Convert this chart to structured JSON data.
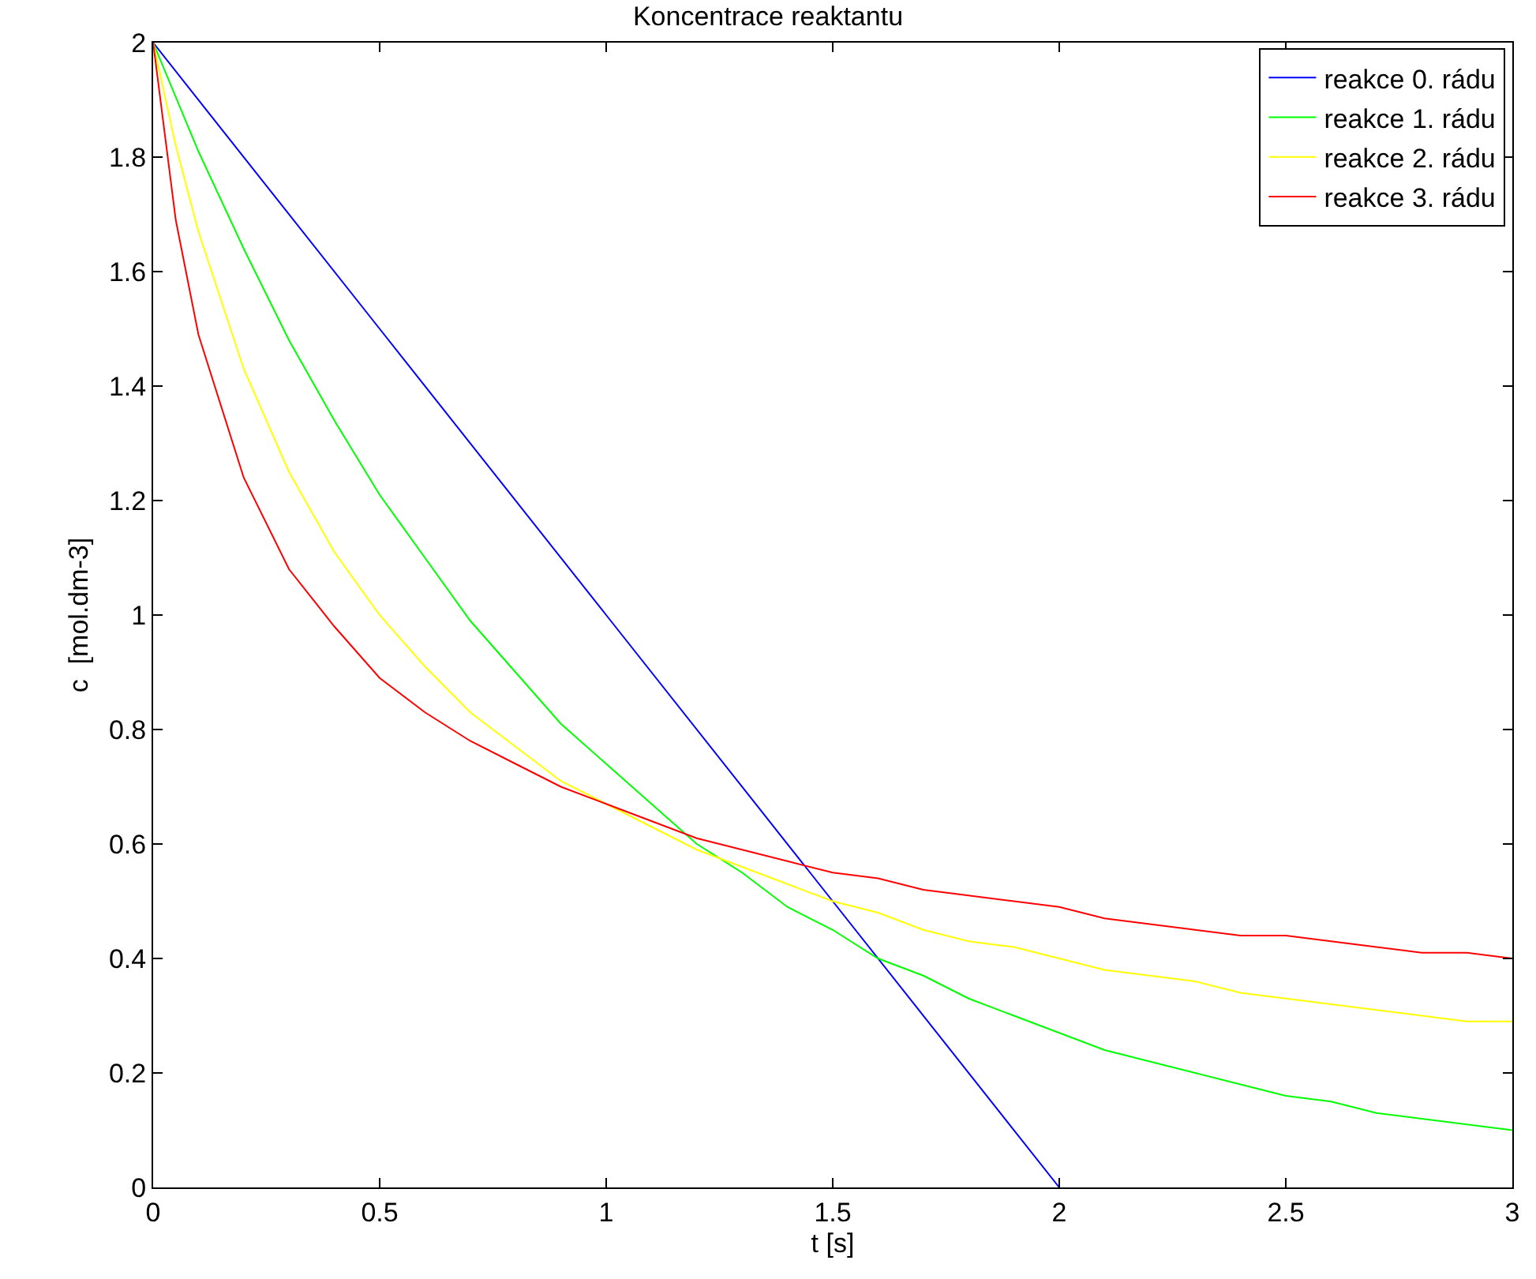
{
  "chart_data": {
    "type": "line",
    "title": "Koncentrace reaktantu",
    "xlabel": "t [s]",
    "ylabel": "c  [mol.dm-3]",
    "xlim": [
      0,
      3
    ],
    "xticks": [
      0,
      0.5,
      1,
      1.5,
      2,
      2.5,
      3
    ],
    "ylim": [
      0,
      2
    ],
    "yticks": [
      0,
      0.2,
      0.4,
      0.6,
      0.8,
      1,
      1.2,
      1.4,
      1.6,
      1.8,
      2
    ],
    "legend": "top right",
    "marker": "none",
    "line_style": "solid",
    "series": [
      {
        "name": "reakce 0. rádu",
        "color": "#0000ff",
        "x": [
          0,
          0.5,
          1,
          1.5,
          2
        ],
        "values": [
          2,
          1.5,
          1,
          0.5,
          0
        ]
      },
      {
        "name": "reakce 1. rádu",
        "color": "#00ff00",
        "x": [
          0,
          0.1,
          0.2,
          0.3,
          0.4,
          0.5,
          0.6,
          0.7,
          0.8,
          0.9,
          1,
          1.1,
          1.2,
          1.3,
          1.4,
          1.5,
          1.6,
          1.7,
          1.8,
          1.9,
          2,
          2.1,
          2.2,
          2.3,
          2.4,
          2.5,
          2.6,
          2.7,
          2.8,
          2.9,
          3
        ],
        "values": [
          2,
          1.81,
          1.64,
          1.48,
          1.34,
          1.21,
          1.1,
          0.99,
          0.9,
          0.81,
          0.74,
          0.67,
          0.6,
          0.55,
          0.49,
          0.45,
          0.4,
          0.37,
          0.33,
          0.3,
          0.27,
          0.24,
          0.22,
          0.2,
          0.18,
          0.16,
          0.15,
          0.13,
          0.12,
          0.11,
          0.1
        ]
      },
      {
        "name": "reakce 2. rádu",
        "color": "#ffff00",
        "x": [
          0,
          0.05,
          0.1,
          0.2,
          0.3,
          0.4,
          0.5,
          0.6,
          0.7,
          0.8,
          0.9,
          1,
          1.1,
          1.2,
          1.3,
          1.4,
          1.5,
          1.6,
          1.7,
          1.8,
          1.9,
          2,
          2.1,
          2.2,
          2.3,
          2.4,
          2.5,
          2.6,
          2.7,
          2.8,
          2.9,
          3
        ],
        "values": [
          2,
          1.82,
          1.67,
          1.43,
          1.25,
          1.11,
          1.0,
          0.91,
          0.83,
          0.77,
          0.71,
          0.67,
          0.63,
          0.59,
          0.56,
          0.53,
          0.5,
          0.48,
          0.45,
          0.43,
          0.42,
          0.4,
          0.38,
          0.37,
          0.36,
          0.34,
          0.33,
          0.32,
          0.31,
          0.3,
          0.29,
          0.29
        ]
      },
      {
        "name": "reakce 3. rádu",
        "color": "#ff0000",
        "x": [
          0,
          0.05,
          0.1,
          0.2,
          0.3,
          0.4,
          0.5,
          0.6,
          0.7,
          0.8,
          0.9,
          1,
          1.1,
          1.2,
          1.3,
          1.4,
          1.5,
          1.6,
          1.7,
          1.8,
          1.9,
          2,
          2.1,
          2.2,
          2.3,
          2.4,
          2.5,
          2.6,
          2.7,
          2.8,
          2.9,
          3
        ],
        "values": [
          2,
          1.69,
          1.49,
          1.24,
          1.08,
          0.98,
          0.89,
          0.83,
          0.78,
          0.74,
          0.7,
          0.67,
          0.64,
          0.61,
          0.59,
          0.57,
          0.55,
          0.54,
          0.52,
          0.51,
          0.5,
          0.49,
          0.47,
          0.46,
          0.45,
          0.44,
          0.44,
          0.43,
          0.42,
          0.41,
          0.41,
          0.4
        ]
      }
    ]
  }
}
